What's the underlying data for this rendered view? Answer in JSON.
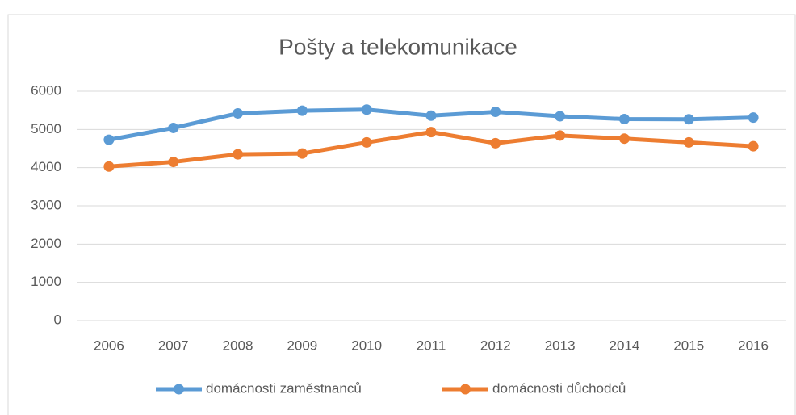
{
  "chart_data": {
    "type": "line",
    "title": "Pošty a telekomunikace",
    "categories": [
      "2006",
      "2007",
      "2008",
      "2009",
      "2010",
      "2011",
      "2012",
      "2013",
      "2014",
      "2015",
      "2016"
    ],
    "series": [
      {
        "name": "domácnosti zaměstnanců",
        "color": "#5b9bd5",
        "values": [
          4730,
          5040,
          5420,
          5490,
          5520,
          5360,
          5460,
          5345,
          5270,
          5265,
          5310
        ]
      },
      {
        "name": "domácnosti důchodců",
        "color": "#ed7d31",
        "values": [
          4030,
          4150,
          4350,
          4370,
          4660,
          4930,
          4640,
          4840,
          4760,
          4660,
          4560
        ]
      }
    ],
    "ylim": [
      0,
      6000
    ],
    "yticks": [
      0,
      1000,
      2000,
      3000,
      4000,
      5000,
      6000
    ],
    "grid": true,
    "legend": "bottom"
  }
}
